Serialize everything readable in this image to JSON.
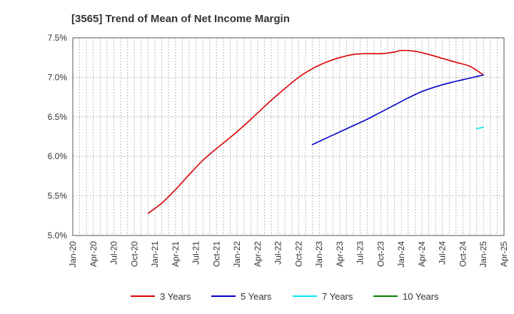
{
  "chart_data": {
    "type": "line",
    "title": "[3565]  Trend of Mean of Net Income Margin",
    "xlabel": "",
    "ylabel": "",
    "x_ticks": [
      "Jan-20",
      "Apr-20",
      "Jul-20",
      "Oct-20",
      "Jan-21",
      "Apr-21",
      "Jul-21",
      "Oct-21",
      "Jan-22",
      "Apr-22",
      "Jul-22",
      "Oct-22",
      "Jan-23",
      "Apr-23",
      "Jul-23",
      "Oct-23",
      "Jan-24",
      "Apr-24",
      "Jul-24",
      "Oct-24",
      "Jan-25",
      "Apr-25"
    ],
    "y_ticks": [
      "5.0%",
      "5.5%",
      "6.0%",
      "6.5%",
      "7.0%",
      "7.5%"
    ],
    "ylim": [
      5.0,
      7.5
    ],
    "xlim": [
      "2020-01",
      "2025-04"
    ],
    "grid": true,
    "legend_position": "bottom",
    "series": [
      {
        "name": "3 Years",
        "color": "#dd0000",
        "points": [
          [
            "2020-12",
            5.28
          ],
          [
            "2021-02",
            5.41
          ],
          [
            "2021-04",
            5.58
          ],
          [
            "2021-06",
            5.77
          ],
          [
            "2021-08",
            5.95
          ],
          [
            "2021-10",
            6.1
          ],
          [
            "2021-12",
            6.24
          ],
          [
            "2022-02",
            6.39
          ],
          [
            "2022-04",
            6.55
          ],
          [
            "2022-06",
            6.71
          ],
          [
            "2022-08",
            6.86
          ],
          [
            "2022-10",
            7.0
          ],
          [
            "2022-12",
            7.11
          ],
          [
            "2023-02",
            7.19
          ],
          [
            "2023-04",
            7.25
          ],
          [
            "2023-06",
            7.29
          ],
          [
            "2023-08",
            7.3
          ],
          [
            "2023-10",
            7.3
          ],
          [
            "2023-12",
            7.32
          ],
          [
            "2024-01",
            7.34
          ],
          [
            "2024-03",
            7.33
          ],
          [
            "2024-05",
            7.29
          ],
          [
            "2024-07",
            7.24
          ],
          [
            "2024-09",
            7.19
          ],
          [
            "2024-11",
            7.14
          ],
          [
            "2025-01",
            7.03
          ]
        ]
      },
      {
        "name": "5 Years",
        "color": "#0000cc",
        "points": [
          [
            "2022-12",
            6.15
          ],
          [
            "2023-02",
            6.23
          ],
          [
            "2023-04",
            6.31
          ],
          [
            "2023-06",
            6.39
          ],
          [
            "2023-08",
            6.47
          ],
          [
            "2023-10",
            6.56
          ],
          [
            "2023-12",
            6.65
          ],
          [
            "2024-02",
            6.74
          ],
          [
            "2024-04",
            6.82
          ],
          [
            "2024-06",
            6.88
          ],
          [
            "2024-08",
            6.93
          ],
          [
            "2024-10",
            6.97
          ],
          [
            "2024-12",
            7.01
          ],
          [
            "2025-01",
            7.03
          ]
        ]
      },
      {
        "name": "7 Years",
        "color": "#00e5ee",
        "points": [
          [
            "2024-12",
            6.35
          ],
          [
            "2025-01",
            6.37
          ]
        ]
      },
      {
        "name": "10 Years",
        "color": "#008000",
        "points": []
      }
    ]
  }
}
